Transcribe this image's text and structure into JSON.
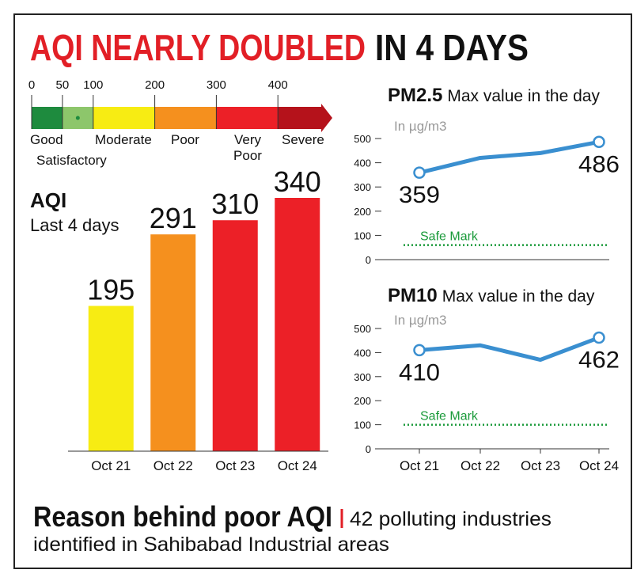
{
  "headline": {
    "lead": "AQI NEARLY DOUBLED",
    "rest": "IN 4 DAYS"
  },
  "scale": {
    "ticks": [
      0,
      50,
      100,
      200,
      300,
      400
    ],
    "labels": [
      "Good",
      "Satisfactory",
      "Moderate",
      "Poor",
      "Very Poor",
      "Severe"
    ],
    "colors": [
      "#1e8b3e",
      "#8dc66b",
      "#f7ec13",
      "#f5901e",
      "#ec2027",
      "#b5121b"
    ]
  },
  "chart_data": [
    {
      "type": "bar",
      "title": "AQI",
      "subtitle": "Last 4 days",
      "categories": [
        "Oct 21",
        "Oct 22",
        "Oct 23",
        "Oct 24"
      ],
      "values": [
        195,
        291,
        310,
        340
      ],
      "colors": [
        "#f7ec13",
        "#f5901e",
        "#ec2027",
        "#ec2027"
      ]
    },
    {
      "type": "line",
      "title": "PM2.5",
      "subtitle": "Max value in the day",
      "unit": "In µg/m3",
      "values": [
        359,
        420,
        440,
        486
      ],
      "color": "#3a8fd0",
      "ylim": [
        0,
        500
      ],
      "yticks": [
        0,
        100,
        200,
        300,
        400,
        500
      ],
      "safe_mark": {
        "label": "Safe Mark",
        "value": 60
      }
    },
    {
      "type": "line",
      "title": "PM10",
      "subtitle": "Max value in the day",
      "unit": "In µg/m3",
      "categories": [
        "Oct 21",
        "Oct 22",
        "Oct 23",
        "Oct 24"
      ],
      "values": [
        410,
        430,
        370,
        462
      ],
      "color": "#3a8fd0",
      "ylim": [
        0,
        500
      ],
      "yticks": [
        0,
        100,
        200,
        300,
        400,
        500
      ],
      "safe_mark": {
        "label": "Safe Mark",
        "value": 100
      }
    }
  ],
  "footer": {
    "heading": "Reason behind poor AQI",
    "line1": "42 polluting industries",
    "line2": "identified in Sahibabad Industrial areas"
  }
}
